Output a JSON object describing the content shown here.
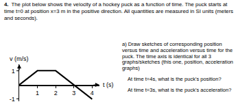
{
  "problem": {
    "number": "4.",
    "statement": "The plot below shows the velocity of a hockey puck as a function of time. The puck starts at time t=0 at position x=3 m in the positive direction. All quantities are measured in SI units (meters and seconds).",
    "part_a": "a) Draw sketches of corresponding position versus time and acceleration versus time for the puck. The time axis is identical for all 3 graphs/sketches (this one, position, acceleration graphs)",
    "questions": [
      "At time t=4s, what is the puck's position?",
      "At time t=3s, what is the puck's acceleration?"
    ]
  },
  "chart_data": {
    "type": "line",
    "x": [
      0,
      1,
      2,
      4
    ],
    "values": [
      0,
      1,
      1,
      -1
    ],
    "color": "#000000",
    "xlim": [
      0,
      4.4
    ],
    "ylim": [
      -1.15,
      1.45
    ],
    "xticks": [
      1,
      2,
      3,
      4
    ],
    "yticks": [
      -1,
      1
    ],
    "xlabel": "t (s)",
    "ylabel": "v (m/s)",
    "grid": false
  }
}
